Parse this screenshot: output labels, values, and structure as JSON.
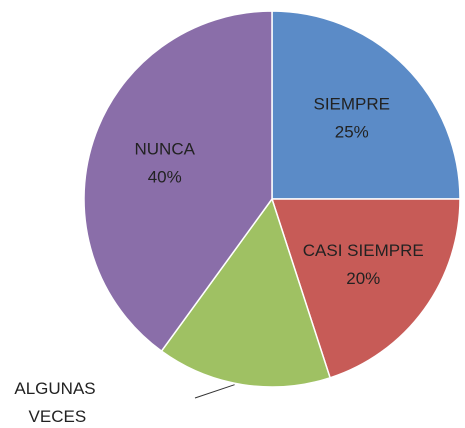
{
  "chart_data": {
    "type": "pie",
    "categories": [
      "SIEMPRE",
      "CASI SIEMPRE",
      "ALGUNAS VECES",
      "NUNCA"
    ],
    "values": [
      25,
      20,
      15,
      40
    ],
    "value_labels": [
      "25%",
      "20%",
      null,
      "40%"
    ],
    "colors": [
      "#5b8bc7",
      "#c75b57",
      "#9fc163",
      "#8a6ea9"
    ]
  }
}
